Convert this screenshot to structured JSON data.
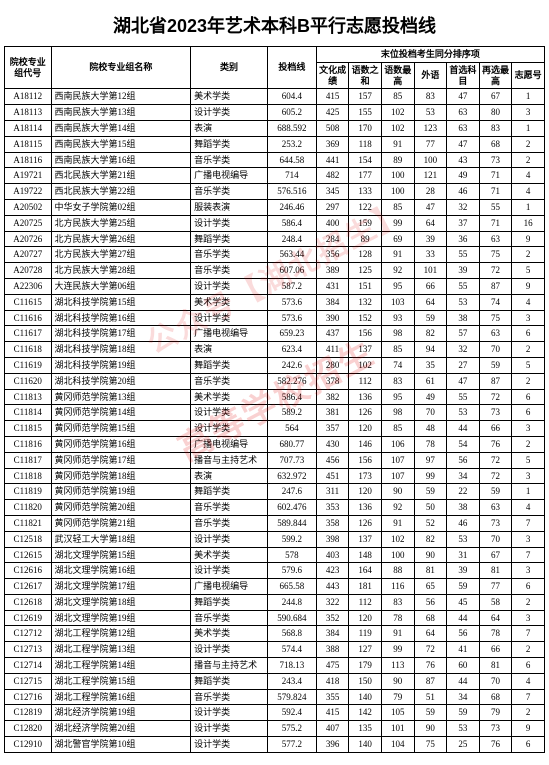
{
  "title": "湖北省2023年艺术本科B平行志愿投档线",
  "header": {
    "code": "院校专业组代号",
    "name": "院校专业组名称",
    "category": "类别",
    "score": "投档线",
    "tie_group": "末位投档考生同分排序项",
    "sub": {
      "s1": "文化成绩",
      "s2": "语数之和",
      "s3": "语数最高",
      "s4": "外语",
      "s5": "首选科目",
      "s6": "再选最高",
      "s7": "志愿号"
    }
  },
  "watermark1": "高等学校招生",
  "watermark2": "公众号【湖北招生】",
  "rows": [
    {
      "code": "A18112",
      "name": "西南民族大学第12组",
      "cat": "美术学类",
      "score": "604.4",
      "s1": "415",
      "s2": "157",
      "s3": "85",
      "s4": "83",
      "s5": "47",
      "s6": "67",
      "s7": "1"
    },
    {
      "code": "A18113",
      "name": "西南民族大学第13组",
      "cat": "设计学类",
      "score": "605.2",
      "s1": "425",
      "s2": "155",
      "s3": "102",
      "s4": "53",
      "s5": "63",
      "s6": "80",
      "s7": "3"
    },
    {
      "code": "A18114",
      "name": "西南民族大学第14组",
      "cat": "表演",
      "score": "688.592",
      "s1": "508",
      "s2": "170",
      "s3": "102",
      "s4": "123",
      "s5": "63",
      "s6": "83",
      "s7": "1"
    },
    {
      "code": "A18115",
      "name": "西南民族大学第15组",
      "cat": "舞蹈学类",
      "score": "253.2",
      "s1": "369",
      "s2": "118",
      "s3": "91",
      "s4": "77",
      "s5": "47",
      "s6": "68",
      "s7": "2"
    },
    {
      "code": "A18116",
      "name": "西南民族大学第16组",
      "cat": "音乐学类",
      "score": "644.58",
      "s1": "441",
      "s2": "154",
      "s3": "89",
      "s4": "100",
      "s5": "43",
      "s6": "73",
      "s7": "2"
    },
    {
      "code": "A19721",
      "name": "西北民族大学第21组",
      "cat": "广播电视编导",
      "score": "714",
      "s1": "482",
      "s2": "177",
      "s3": "100",
      "s4": "121",
      "s5": "49",
      "s6": "71",
      "s7": "4"
    },
    {
      "code": "A19722",
      "name": "西北民族大学第22组",
      "cat": "音乐学类",
      "score": "576.516",
      "s1": "345",
      "s2": "133",
      "s3": "100",
      "s4": "28",
      "s5": "46",
      "s6": "71",
      "s7": "4"
    },
    {
      "code": "A20502",
      "name": "中华女子学院第02组",
      "cat": "服装表演",
      "score": "246.46",
      "s1": "297",
      "s2": "122",
      "s3": "85",
      "s4": "47",
      "s5": "32",
      "s6": "55",
      "s7": "1"
    },
    {
      "code": "A20725",
      "name": "北方民族大学第25组",
      "cat": "设计学类",
      "score": "586.4",
      "s1": "400",
      "s2": "159",
      "s3": "99",
      "s4": "64",
      "s5": "37",
      "s6": "71",
      "s7": "16"
    },
    {
      "code": "A20726",
      "name": "北方民族大学第26组",
      "cat": "舞蹈学类",
      "score": "248.4",
      "s1": "284",
      "s2": "89",
      "s3": "69",
      "s4": "39",
      "s5": "36",
      "s6": "63",
      "s7": "9"
    },
    {
      "code": "A20727",
      "name": "北方民族大学第27组",
      "cat": "音乐学类",
      "score": "563.44",
      "s1": "356",
      "s2": "128",
      "s3": "91",
      "s4": "33",
      "s5": "55",
      "s6": "75",
      "s7": "2"
    },
    {
      "code": "A20728",
      "name": "北方民族大学第28组",
      "cat": "音乐学类",
      "score": "607.06",
      "s1": "389",
      "s2": "125",
      "s3": "92",
      "s4": "101",
      "s5": "39",
      "s6": "72",
      "s7": "5"
    },
    {
      "code": "A22306",
      "name": "大连民族大学第06组",
      "cat": "设计学类",
      "score": "587.2",
      "s1": "431",
      "s2": "151",
      "s3": "95",
      "s4": "66",
      "s5": "55",
      "s6": "87",
      "s7": "9"
    },
    {
      "code": "C11615",
      "name": "湖北科技学院第15组",
      "cat": "美术学类",
      "score": "573.6",
      "s1": "384",
      "s2": "132",
      "s3": "103",
      "s4": "64",
      "s5": "53",
      "s6": "74",
      "s7": "4"
    },
    {
      "code": "C11616",
      "name": "湖北科技学院第16组",
      "cat": "设计学类",
      "score": "573.6",
      "s1": "390",
      "s2": "152",
      "s3": "93",
      "s4": "59",
      "s5": "38",
      "s6": "75",
      "s7": "3"
    },
    {
      "code": "C11617",
      "name": "湖北科技学院第17组",
      "cat": "广播电视编导",
      "score": "659.23",
      "s1": "437",
      "s2": "156",
      "s3": "98",
      "s4": "82",
      "s5": "57",
      "s6": "63",
      "s7": "6"
    },
    {
      "code": "C11618",
      "name": "湖北科技学院第18组",
      "cat": "表演",
      "score": "623.4",
      "s1": "411",
      "s2": "137",
      "s3": "85",
      "s4": "94",
      "s5": "32",
      "s6": "70",
      "s7": "2"
    },
    {
      "code": "C11619",
      "name": "湖北科技学院第19组",
      "cat": "舞蹈学类",
      "score": "242.6",
      "s1": "280",
      "s2": "102",
      "s3": "74",
      "s4": "35",
      "s5": "27",
      "s6": "59",
      "s7": "5"
    },
    {
      "code": "C11620",
      "name": "湖北科技学院第20组",
      "cat": "音乐学类",
      "score": "582.276",
      "s1": "378",
      "s2": "112",
      "s3": "83",
      "s4": "61",
      "s5": "47",
      "s6": "87",
      "s7": "2"
    },
    {
      "code": "C11813",
      "name": "黄冈师范学院第13组",
      "cat": "美术学类",
      "score": "586.4",
      "s1": "382",
      "s2": "136",
      "s3": "95",
      "s4": "49",
      "s5": "55",
      "s6": "72",
      "s7": "6"
    },
    {
      "code": "C11814",
      "name": "黄冈师范学院第14组",
      "cat": "设计学类",
      "score": "589.2",
      "s1": "381",
      "s2": "126",
      "s3": "98",
      "s4": "70",
      "s5": "53",
      "s6": "73",
      "s7": "6"
    },
    {
      "code": "C11815",
      "name": "黄冈师范学院第15组",
      "cat": "设计学类",
      "score": "564",
      "s1": "357",
      "s2": "120",
      "s3": "85",
      "s4": "48",
      "s5": "44",
      "s6": "66",
      "s7": "3"
    },
    {
      "code": "C11816",
      "name": "黄冈师范学院第16组",
      "cat": "广播电视编导",
      "score": "680.77",
      "s1": "430",
      "s2": "146",
      "s3": "106",
      "s4": "78",
      "s5": "54",
      "s6": "76",
      "s7": "2"
    },
    {
      "code": "C11817",
      "name": "黄冈师范学院第17组",
      "cat": "播音与主持艺术",
      "score": "707.73",
      "s1": "456",
      "s2": "156",
      "s3": "107",
      "s4": "97",
      "s5": "56",
      "s6": "72",
      "s7": "5"
    },
    {
      "code": "C11818",
      "name": "黄冈师范学院第18组",
      "cat": "表演",
      "score": "632.972",
      "s1": "451",
      "s2": "173",
      "s3": "107",
      "s4": "99",
      "s5": "34",
      "s6": "72",
      "s7": "3"
    },
    {
      "code": "C11819",
      "name": "黄冈师范学院第19组",
      "cat": "舞蹈学类",
      "score": "247.6",
      "s1": "311",
      "s2": "120",
      "s3": "90",
      "s4": "59",
      "s5": "22",
      "s6": "59",
      "s7": "1"
    },
    {
      "code": "C11820",
      "name": "黄冈师范学院第20组",
      "cat": "音乐学类",
      "score": "602.476",
      "s1": "353",
      "s2": "136",
      "s3": "92",
      "s4": "50",
      "s5": "38",
      "s6": "63",
      "s7": "4"
    },
    {
      "code": "C11821",
      "name": "黄冈师范学院第21组",
      "cat": "音乐学类",
      "score": "589.844",
      "s1": "358",
      "s2": "126",
      "s3": "91",
      "s4": "52",
      "s5": "46",
      "s6": "73",
      "s7": "7"
    },
    {
      "code": "C12518",
      "name": "武汉轻工大学第18组",
      "cat": "设计学类",
      "score": "599.2",
      "s1": "398",
      "s2": "137",
      "s3": "102",
      "s4": "82",
      "s5": "53",
      "s6": "70",
      "s7": "3"
    },
    {
      "code": "C12615",
      "name": "湖北文理学院第15组",
      "cat": "美术学类",
      "score": "578",
      "s1": "403",
      "s2": "148",
      "s3": "100",
      "s4": "90",
      "s5": "31",
      "s6": "67",
      "s7": "7"
    },
    {
      "code": "C12616",
      "name": "湖北文理学院第16组",
      "cat": "设计学类",
      "score": "579.6",
      "s1": "423",
      "s2": "164",
      "s3": "88",
      "s4": "81",
      "s5": "39",
      "s6": "81",
      "s7": "3"
    },
    {
      "code": "C12617",
      "name": "湖北文理学院第17组",
      "cat": "广播电视编导",
      "score": "665.58",
      "s1": "443",
      "s2": "181",
      "s3": "116",
      "s4": "65",
      "s5": "59",
      "s6": "77",
      "s7": "6"
    },
    {
      "code": "C12618",
      "name": "湖北文理学院第18组",
      "cat": "舞蹈学类",
      "score": "244.8",
      "s1": "322",
      "s2": "112",
      "s3": "83",
      "s4": "56",
      "s5": "45",
      "s6": "58",
      "s7": "2"
    },
    {
      "code": "C12619",
      "name": "湖北文理学院第19组",
      "cat": "音乐学类",
      "score": "590.684",
      "s1": "352",
      "s2": "120",
      "s3": "78",
      "s4": "68",
      "s5": "44",
      "s6": "64",
      "s7": "3"
    },
    {
      "code": "C12712",
      "name": "湖北工程学院第12组",
      "cat": "美术学类",
      "score": "568.8",
      "s1": "384",
      "s2": "119",
      "s3": "91",
      "s4": "64",
      "s5": "56",
      "s6": "78",
      "s7": "7"
    },
    {
      "code": "C12713",
      "name": "湖北工程学院第13组",
      "cat": "设计学类",
      "score": "574.4",
      "s1": "388",
      "s2": "127",
      "s3": "99",
      "s4": "72",
      "s5": "41",
      "s6": "66",
      "s7": "2"
    },
    {
      "code": "C12714",
      "name": "湖北工程学院第14组",
      "cat": "播音与主持艺术",
      "score": "718.13",
      "s1": "475",
      "s2": "179",
      "s3": "113",
      "s4": "76",
      "s5": "60",
      "s6": "81",
      "s7": "6"
    },
    {
      "code": "C12715",
      "name": "湖北工程学院第15组",
      "cat": "舞蹈学类",
      "score": "243.4",
      "s1": "418",
      "s2": "150",
      "s3": "90",
      "s4": "87",
      "s5": "44",
      "s6": "70",
      "s7": "4"
    },
    {
      "code": "C12716",
      "name": "湖北工程学院第16组",
      "cat": "音乐学类",
      "score": "579.824",
      "s1": "355",
      "s2": "140",
      "s3": "79",
      "s4": "51",
      "s5": "34",
      "s6": "68",
      "s7": "7"
    },
    {
      "code": "C12819",
      "name": "湖北经济学院第19组",
      "cat": "设计学类",
      "score": "592.4",
      "s1": "415",
      "s2": "142",
      "s3": "105",
      "s4": "59",
      "s5": "59",
      "s6": "79",
      "s7": "2"
    },
    {
      "code": "C12820",
      "name": "湖北经济学院第20组",
      "cat": "设计学类",
      "score": "575.2",
      "s1": "407",
      "s2": "135",
      "s3": "101",
      "s4": "90",
      "s5": "53",
      "s6": "73",
      "s7": "9"
    },
    {
      "code": "C12910",
      "name": "湖北警官学院第10组",
      "cat": "设计学类",
      "score": "577.2",
      "s1": "396",
      "s2": "140",
      "s3": "104",
      "s4": "75",
      "s5": "25",
      "s6": "76",
      "s7": "6"
    }
  ]
}
